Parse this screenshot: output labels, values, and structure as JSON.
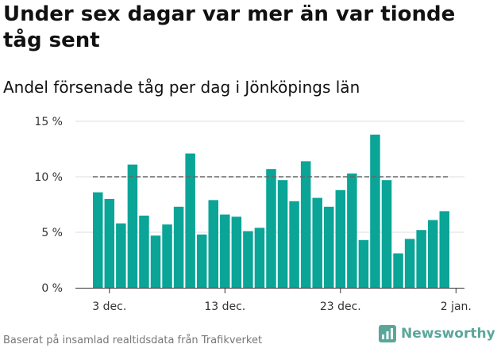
{
  "header": {
    "title": "Under sex dagar var mer än var tionde tåg sent",
    "subtitle": "Andel försenade tåg per dag i Jönköpings län"
  },
  "footer": {
    "source": "Baserat på insamlad realtidsdata från Trafikverket",
    "brand": "Newsworthy"
  },
  "colors": {
    "bar": "#0aa597",
    "reference_line": "#666666",
    "grid": "#dddddd",
    "axis": "#333333",
    "brand": "#5aa79a"
  },
  "chart_data": {
    "type": "bar",
    "title": "Under sex dagar var mer än var tionde tåg sent",
    "subtitle": "Andel försenade tåg per dag i Jönköpings län",
    "xlabel": "",
    "ylabel": "",
    "ylim": [
      0,
      15
    ],
    "y_ticks": [
      0,
      5,
      10,
      15
    ],
    "y_tick_labels": [
      "0 %",
      "5 %",
      "10 %",
      "15 %"
    ],
    "x_tick_labels": [
      {
        "category": "3 dec.",
        "label": "3 dec."
      },
      {
        "category": "13 dec.",
        "label": "13 dec."
      },
      {
        "category": "23 dec.",
        "label": "23 dec."
      },
      {
        "category": "2 jan.",
        "label": "2 jan."
      }
    ],
    "reference_line": {
      "value": 10,
      "style": "dashed"
    },
    "grid": true,
    "categories": [
      "2 dec.",
      "3 dec.",
      "4 dec.",
      "5 dec.",
      "6 dec.",
      "7 dec.",
      "8 dec.",
      "9 dec.",
      "10 dec.",
      "11 dec.",
      "12 dec.",
      "13 dec.",
      "14 dec.",
      "15 dec.",
      "16 dec.",
      "17 dec.",
      "18 dec.",
      "19 dec.",
      "20 dec.",
      "21 dec.",
      "22 dec.",
      "23 dec.",
      "24 dec.",
      "25 dec.",
      "26 dec.",
      "27 dec.",
      "28 dec.",
      "29 dec.",
      "30 dec.",
      "31 dec.",
      "1 jan.",
      "2 jan."
    ],
    "values": [
      8.6,
      8.0,
      5.8,
      11.1,
      6.5,
      4.7,
      5.7,
      7.3,
      12.1,
      4.8,
      7.9,
      6.6,
      6.4,
      5.1,
      5.4,
      10.7,
      9.7,
      7.8,
      11.4,
      8.1,
      7.3,
      8.8,
      10.3,
      4.3,
      13.8,
      9.7,
      3.1,
      4.4,
      5.2,
      6.1,
      6.9,
      null
    ]
  }
}
